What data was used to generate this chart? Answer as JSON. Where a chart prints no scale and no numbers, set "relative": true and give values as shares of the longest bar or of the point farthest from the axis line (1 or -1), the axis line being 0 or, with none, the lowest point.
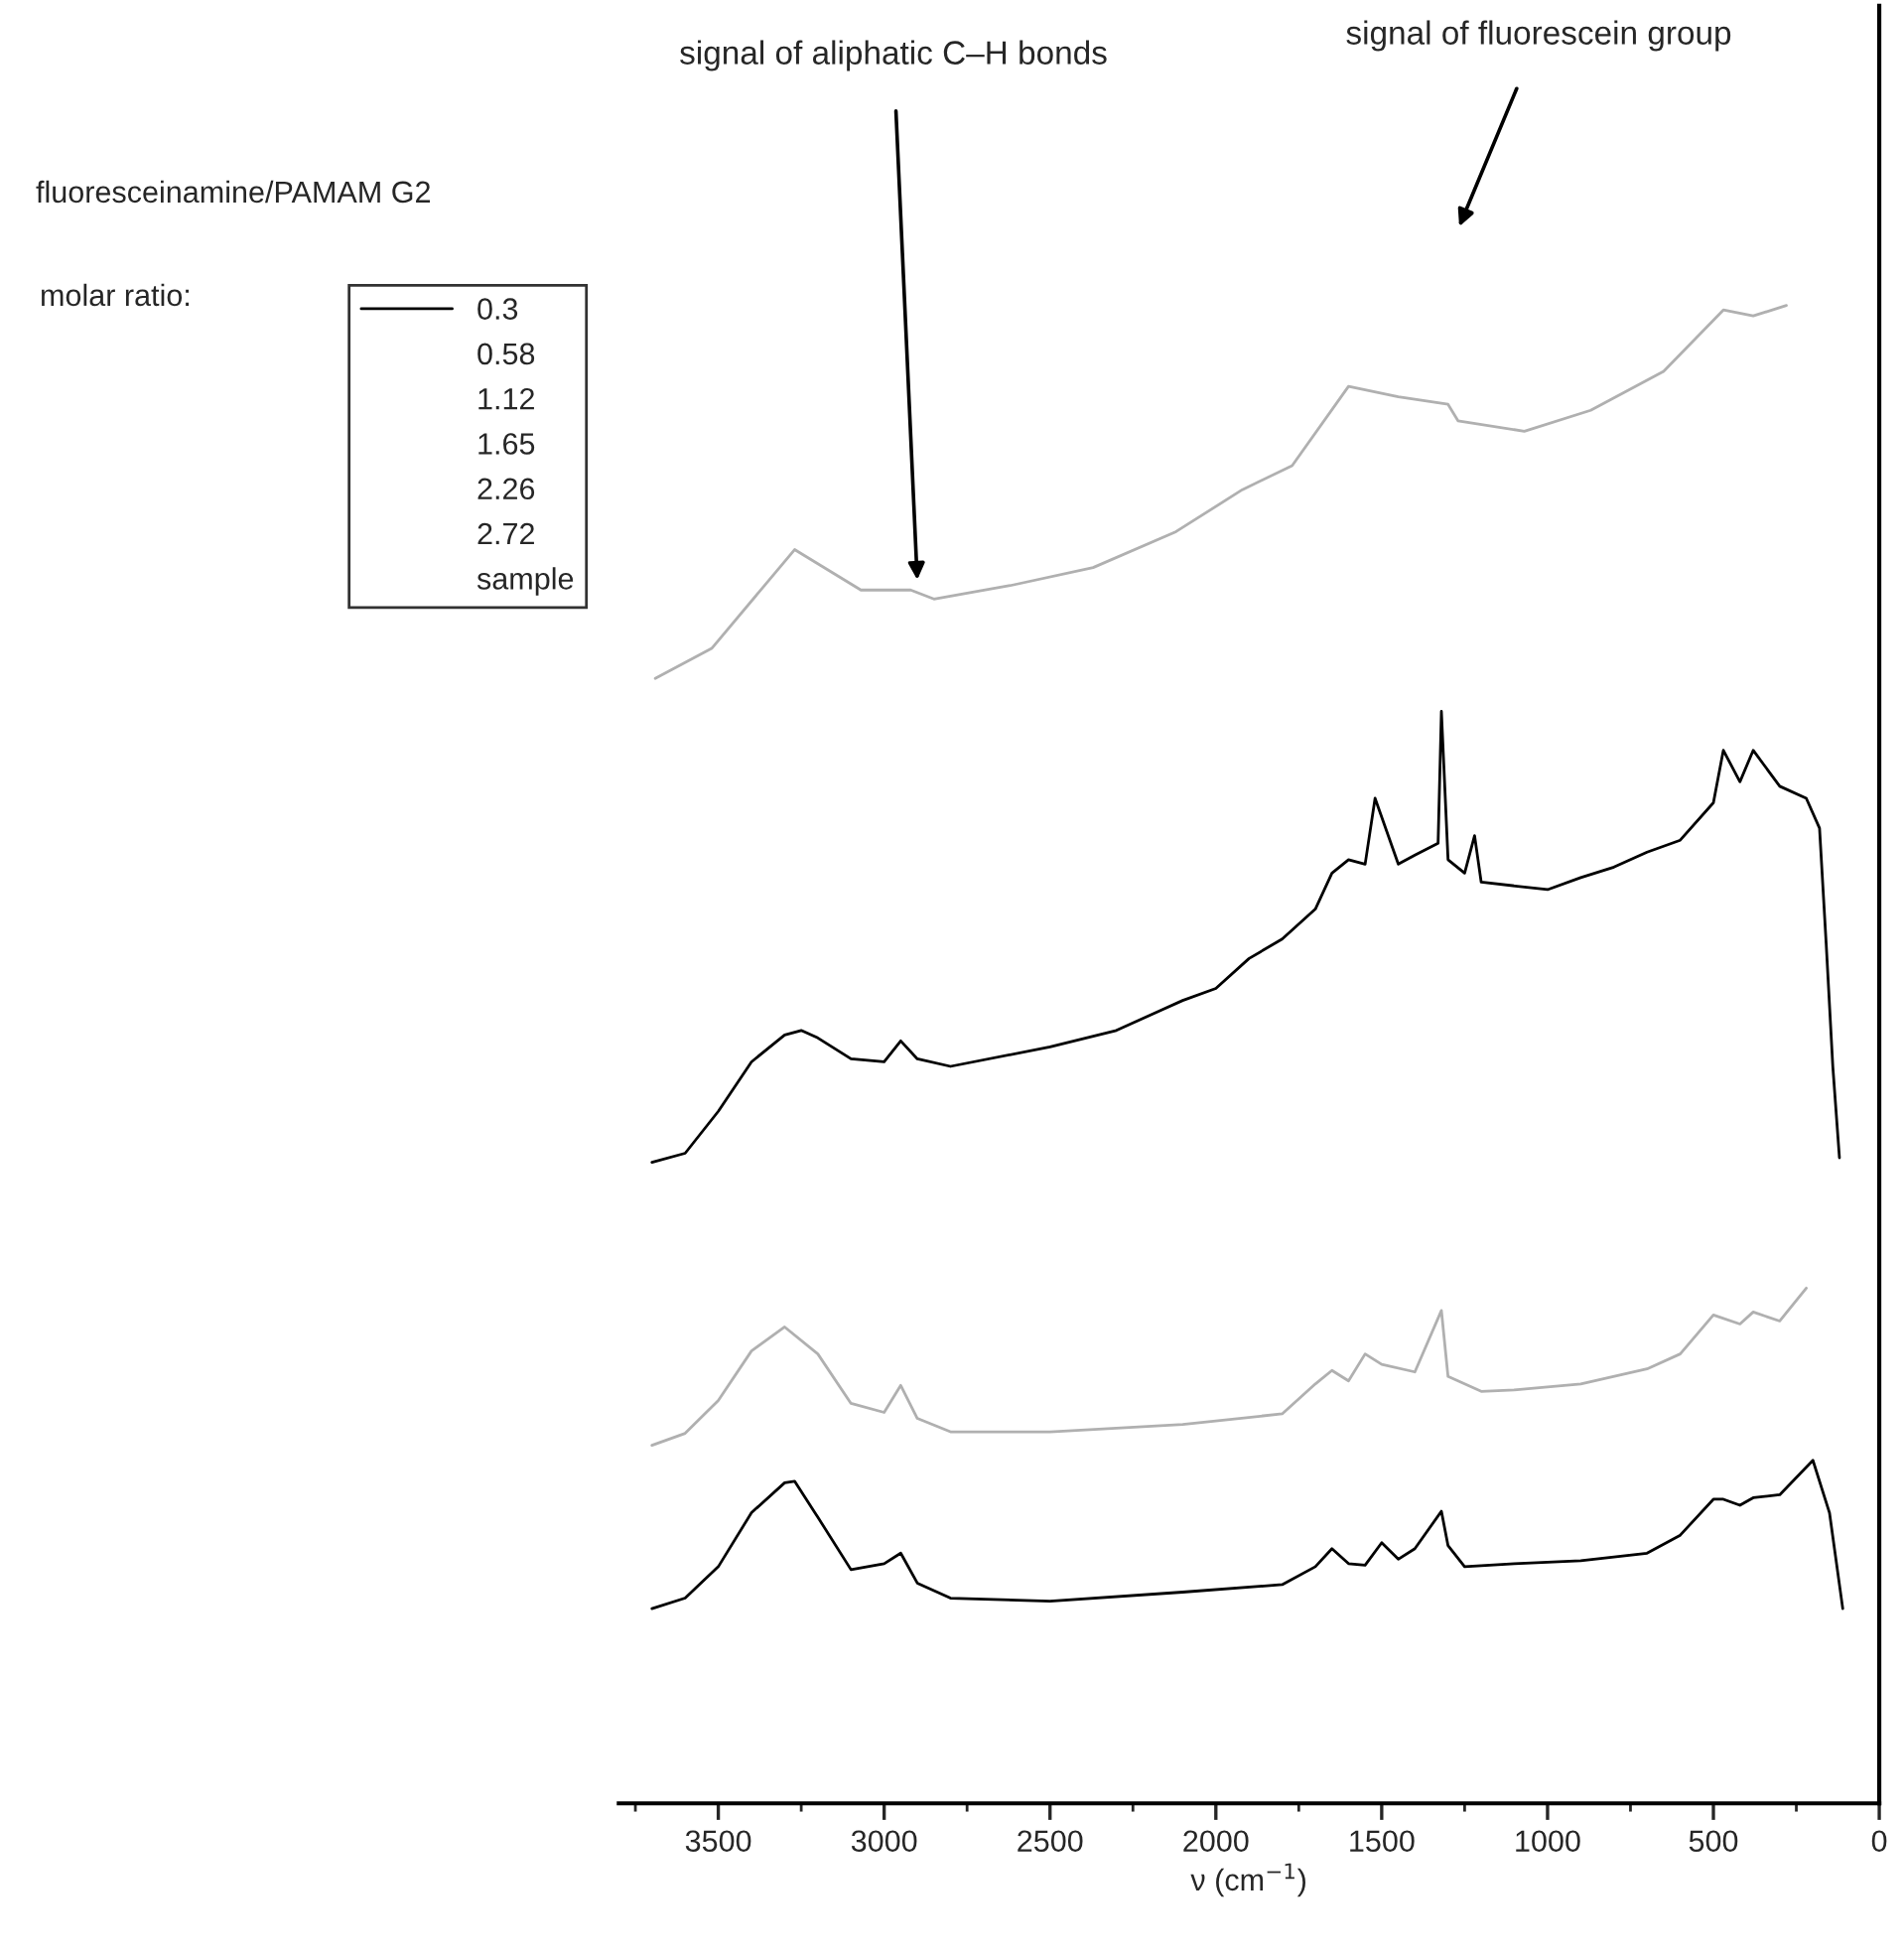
{
  "chart_data": {
    "type": "line",
    "relative": true,
    "xlabel": "ν (cm$^{−1}$)",
    "legend_title": "fluoresceinamine/PAMAM G2",
    "legend": "top left",
    "xlim": [
      3800,
      0
    ],
    "xticks": [
      3500,
      3000,
      2500,
      2000,
      1500,
      1000,
      500,
      0
    ],
    "annotations": [
      "signal of aliphatic C–H bonds",
      "signal of fluorescein group",
      "molar ratio:",
      "0.58",
      "1.12",
      "1.65",
      "2.26",
      "2.72",
      "sample"
    ],
    "series": [
      {
        "name": "0.3",
        "color": "#000000",
        "x": [
          3700,
          3600,
          3500,
          3400,
          3300,
          3270,
          3200,
          3100,
          3000,
          2950,
          2900,
          2800,
          2500,
          2100,
          1800,
          1700,
          1650,
          1600,
          1550,
          1500,
          1450,
          1400,
          1320,
          1300,
          1250,
          1100,
          900,
          700,
          600,
          500,
          470,
          420,
          380,
          300,
          200,
          150,
          110
        ],
        "values": [
          0.13,
          0.137,
          0.158,
          0.194,
          0.214,
          0.215,
          0.191,
          0.156,
          0.16,
          0.167,
          0.147,
          0.137,
          0.135,
          0.141,
          0.146,
          0.158,
          0.17,
          0.16,
          0.159,
          0.174,
          0.163,
          0.17,
          0.195,
          0.172,
          0.158,
          0.16,
          0.162,
          0.167,
          0.179,
          0.203,
          0.203,
          0.199,
          0.204,
          0.206,
          0.229,
          0.194,
          0.13
        ]
      },
      {
        "color": "#b0b0b0",
        "x": [
          3700,
          3600,
          3500,
          3400,
          3300,
          3200,
          3100,
          3000,
          2950,
          2900,
          2800,
          2500,
          2100,
          1800,
          1700,
          1650,
          1600,
          1550,
          1500,
          1400,
          1320,
          1300,
          1200,
          1100,
          900,
          700,
          600,
          500,
          420,
          380,
          300,
          220
        ],
        "values": [
          0.239,
          0.247,
          0.269,
          0.302,
          0.318,
          0.3,
          0.267,
          0.261,
          0.279,
          0.257,
          0.248,
          0.248,
          0.253,
          0.26,
          0.28,
          0.289,
          0.282,
          0.3,
          0.293,
          0.288,
          0.329,
          0.285,
          0.275,
          0.276,
          0.28,
          0.29,
          0.3,
          0.326,
          0.32,
          0.328,
          0.322,
          0.344
        ]
      },
      {
        "color": "#000000",
        "x": [
          3700,
          3600,
          3500,
          3400,
          3300,
          3250,
          3200,
          3100,
          3000,
          2950,
          2900,
          2800,
          2500,
          2300,
          2100,
          2000,
          1900,
          1800,
          1700,
          1650,
          1600,
          1550,
          1520,
          1450,
          1400,
          1330,
          1320,
          1300,
          1250,
          1220,
          1200,
          1000,
          900,
          800,
          700,
          600,
          500,
          470,
          420,
          380,
          300,
          220,
          180,
          160,
          140,
          120
        ],
        "values": [
          0.428,
          0.434,
          0.462,
          0.495,
          0.513,
          0.516,
          0.511,
          0.497,
          0.495,
          0.509,
          0.497,
          0.492,
          0.505,
          0.516,
          0.536,
          0.544,
          0.564,
          0.577,
          0.597,
          0.621,
          0.63,
          0.627,
          0.671,
          0.627,
          0.633,
          0.641,
          0.729,
          0.63,
          0.621,
          0.646,
          0.615,
          0.61,
          0.618,
          0.625,
          0.635,
          0.643,
          0.668,
          0.703,
          0.682,
          0.703,
          0.679,
          0.671,
          0.651,
          0.574,
          0.492,
          0.431
        ]
      },
      {
        "color": "#b0b0b0",
        "x": [
          3690,
          3520,
          3270,
          3070,
          2920,
          2850,
          2620,
          2370,
          2120,
          1920,
          1770,
          1600,
          1450,
          1300,
          1270,
          1070,
          870,
          650,
          470,
          380,
          280
        ],
        "values": [
          0.751,
          0.771,
          0.837,
          0.81,
          0.81,
          0.804,
          0.813,
          0.825,
          0.849,
          0.877,
          0.893,
          0.946,
          0.939,
          0.934,
          0.923,
          0.916,
          0.93,
          0.956,
          0.997,
          0.993,
          1
        ]
      }
    ]
  }
}
